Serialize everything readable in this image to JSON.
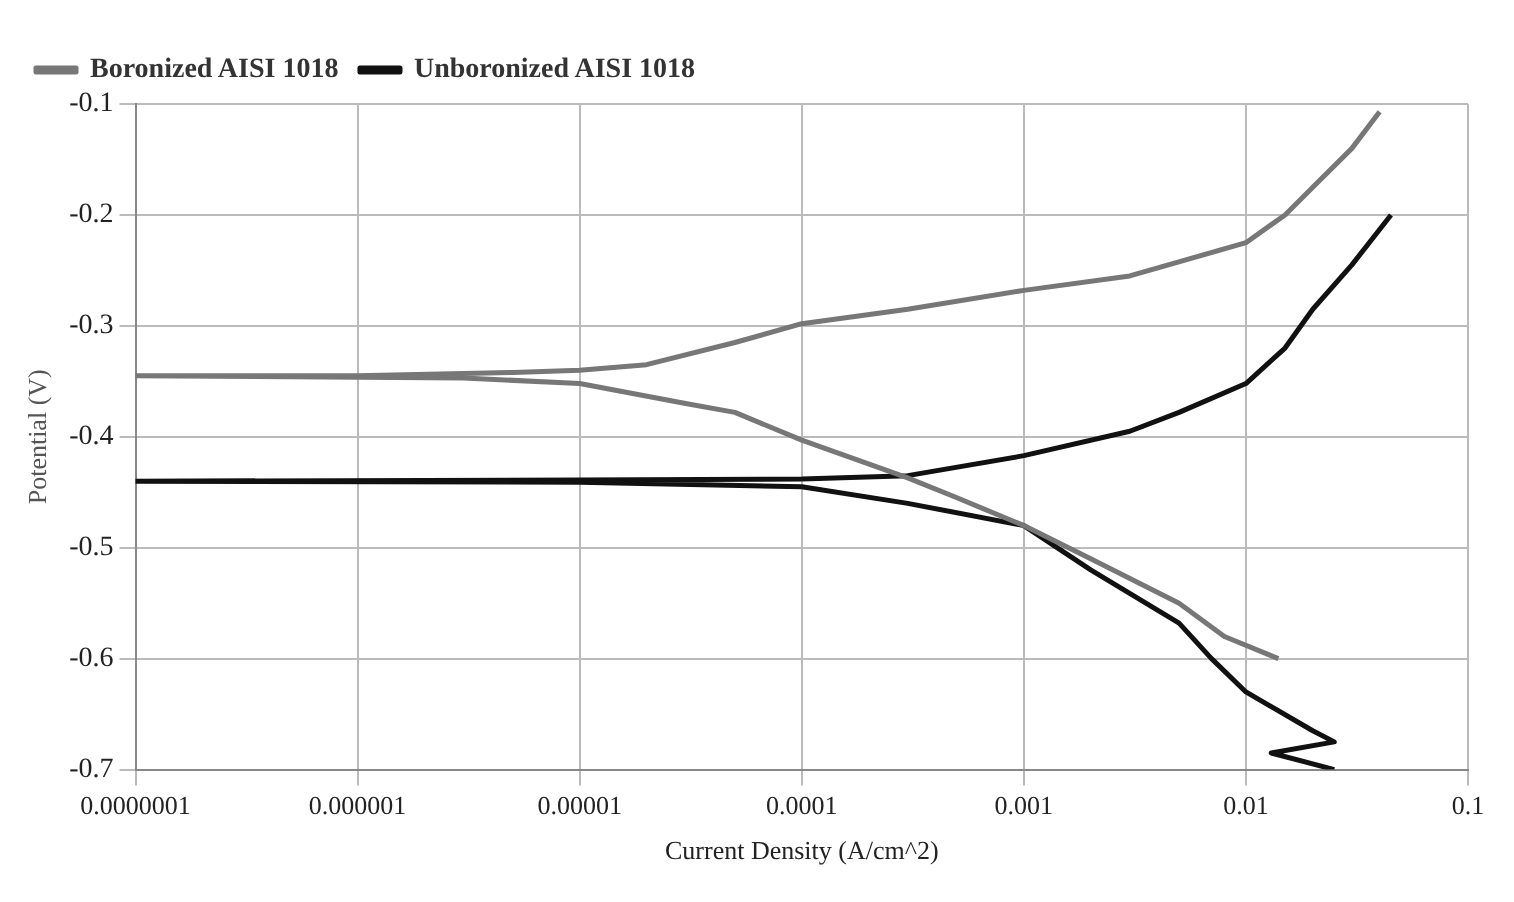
{
  "chart_data": {
    "type": "line",
    "xlabel": "Current Density (A/cm^2)",
    "ylabel": "Potential (V)",
    "log": "x",
    "grid": true,
    "legend": "top left",
    "marker": "none",
    "line_style": "solid",
    "xlim": [
      1e-07,
      0.1
    ],
    "ylim": [
      -0.7,
      -0.1
    ],
    "xticks": [
      {
        "value": 1e-07,
        "label": "0.0000001"
      },
      {
        "value": 1e-06,
        "label": "0.000001"
      },
      {
        "value": 1e-05,
        "label": "0.00001"
      },
      {
        "value": 0.0001,
        "label": "0.0001"
      },
      {
        "value": 0.001,
        "label": "0.001"
      },
      {
        "value": 0.01,
        "label": "0.01"
      },
      {
        "value": 0.1,
        "label": "0.1"
      }
    ],
    "yticks": [
      -0.7,
      -0.6,
      -0.5,
      -0.4,
      -0.3,
      -0.2,
      -0.1
    ],
    "series": [
      {
        "name": "Boronized AISI 1018",
        "color": "#777777",
        "x": [
          0.014,
          0.008,
          0.005,
          0.002,
          0.001,
          0.0005,
          0.0003,
          0.0001,
          5e-05,
          3e-05,
          1e-05,
          3e-06,
          1e-07,
          1e-06,
          5e-06,
          1e-05,
          2e-05,
          5e-05,
          0.0001,
          0.0003,
          0.001,
          0.003,
          0.01,
          0.015,
          0.02,
          0.03,
          0.04
        ],
        "values": [
          -0.6,
          -0.58,
          -0.55,
          -0.51,
          -0.48,
          -0.455,
          -0.437,
          -0.403,
          -0.378,
          -0.37,
          -0.352,
          -0.347,
          -0.345,
          -0.345,
          -0.342,
          -0.34,
          -0.335,
          -0.315,
          -0.298,
          -0.285,
          -0.268,
          -0.255,
          -0.225,
          -0.2,
          -0.175,
          -0.14,
          -0.107
        ]
      },
      {
        "name": "Unboronized AISI 1018",
        "color": "#111111",
        "x": [
          0.025,
          0.013,
          0.025,
          0.02,
          0.01,
          0.007,
          0.005,
          0.002,
          0.001,
          0.0003,
          0.0001,
          1e-05,
          1e-07,
          1e-05,
          0.0001,
          0.0003,
          0.001,
          0.003,
          0.005,
          0.01,
          0.015,
          0.02,
          0.03,
          0.045
        ],
        "values": [
          -0.7,
          -0.685,
          -0.675,
          -0.665,
          -0.63,
          -0.6,
          -0.568,
          -0.52,
          -0.48,
          -0.46,
          -0.445,
          -0.441,
          -0.44,
          -0.439,
          -0.438,
          -0.435,
          -0.417,
          -0.395,
          -0.378,
          -0.352,
          -0.32,
          -0.285,
          -0.245,
          -0.2
        ]
      }
    ]
  }
}
